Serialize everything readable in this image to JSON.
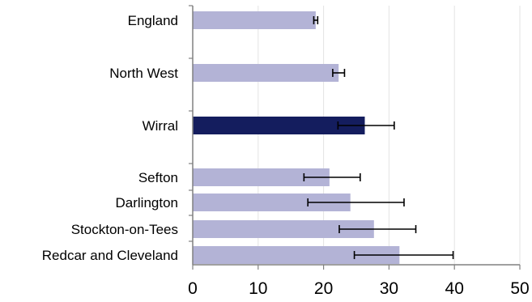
{
  "chart_data": {
    "type": "bar",
    "orientation": "horizontal",
    "title": "",
    "xlabel": "",
    "ylabel": "",
    "xlim": [
      0,
      50
    ],
    "xticks": [
      0,
      10,
      20,
      30,
      40,
      50
    ],
    "grid": "vertical",
    "categories": [
      "England",
      "North West",
      "Wirral",
      "Sefton",
      "Darlington",
      "Stockton-on-Tees",
      "Redcar and Cleveland"
    ],
    "values": [
      18.8,
      22.3,
      26.3,
      20.9,
      24.1,
      27.7,
      31.6
    ],
    "error_low": [
      18.5,
      21.4,
      22.2,
      17.0,
      17.6,
      22.4,
      24.7
    ],
    "error_high": [
      19.1,
      23.2,
      30.8,
      25.6,
      32.3,
      34.1,
      39.8
    ],
    "highlight": "Wirral",
    "colors": {
      "bar": "#b3b3d6",
      "highlight": "#141d5e",
      "axis": "#808080",
      "grid": "#e3e3e3",
      "error": "#000000"
    }
  }
}
